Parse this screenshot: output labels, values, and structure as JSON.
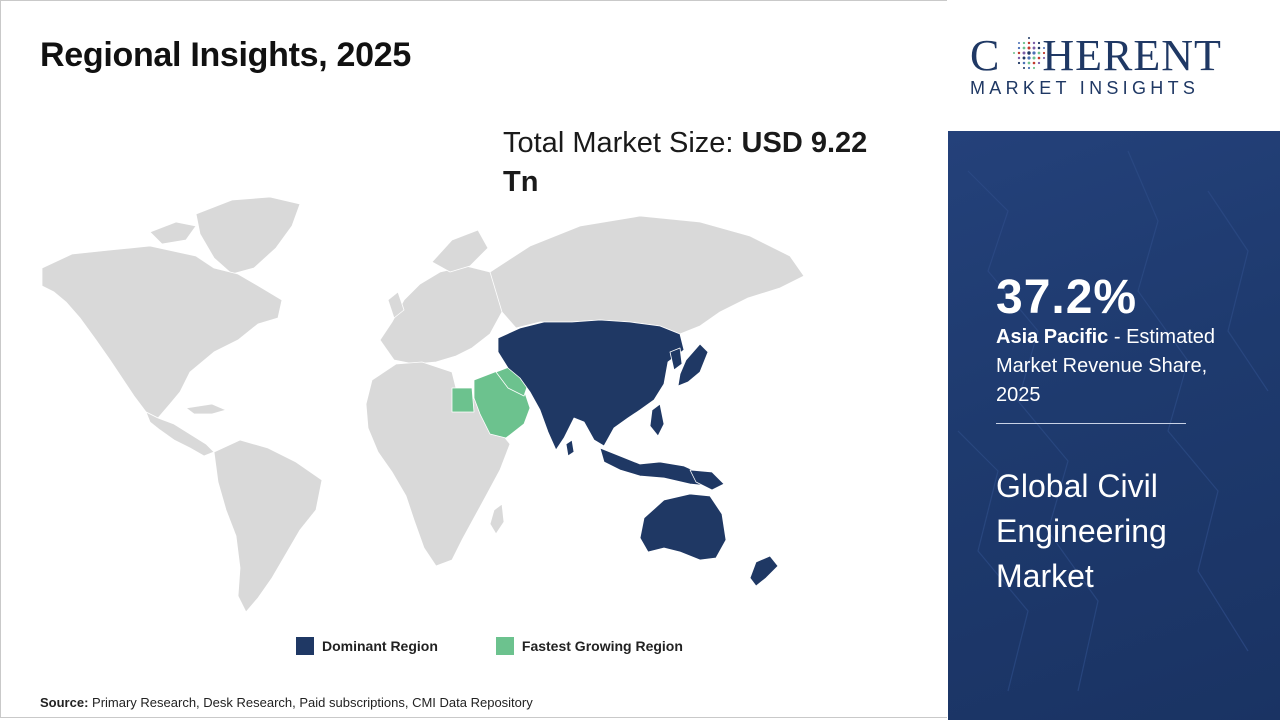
{
  "title": "Regional Insights, 2025",
  "total_market": {
    "label": "Total Market Size: ",
    "value": "USD 9.22 Tn"
  },
  "legend": {
    "dominant": {
      "label": "Dominant Region",
      "color": "#1f3864"
    },
    "fastest": {
      "label": "Fastest Growing Region",
      "color": "#6cc28e"
    }
  },
  "map": {
    "land_color": "#d9d9d9",
    "dominant_regions": [
      "Asia Pacific"
    ],
    "fastest_growing_regions": [
      "Middle East"
    ]
  },
  "source": {
    "label": "Source:",
    "text": " Primary Research, Desk Research, Paid subscriptions, CMI Data Repository"
  },
  "logo": {
    "word_left": "C",
    "word_right": "HERENT",
    "subtitle": "MARKET INSIGHTS",
    "globe_icon": "globe-dots-icon"
  },
  "highlight": {
    "share": "37.2%",
    "region": "Asia Pacific",
    "description": " - Estimated Market Revenue Share, 2025",
    "market": "Global Civil Engineering Market",
    "panel_color": "#1f3864"
  }
}
